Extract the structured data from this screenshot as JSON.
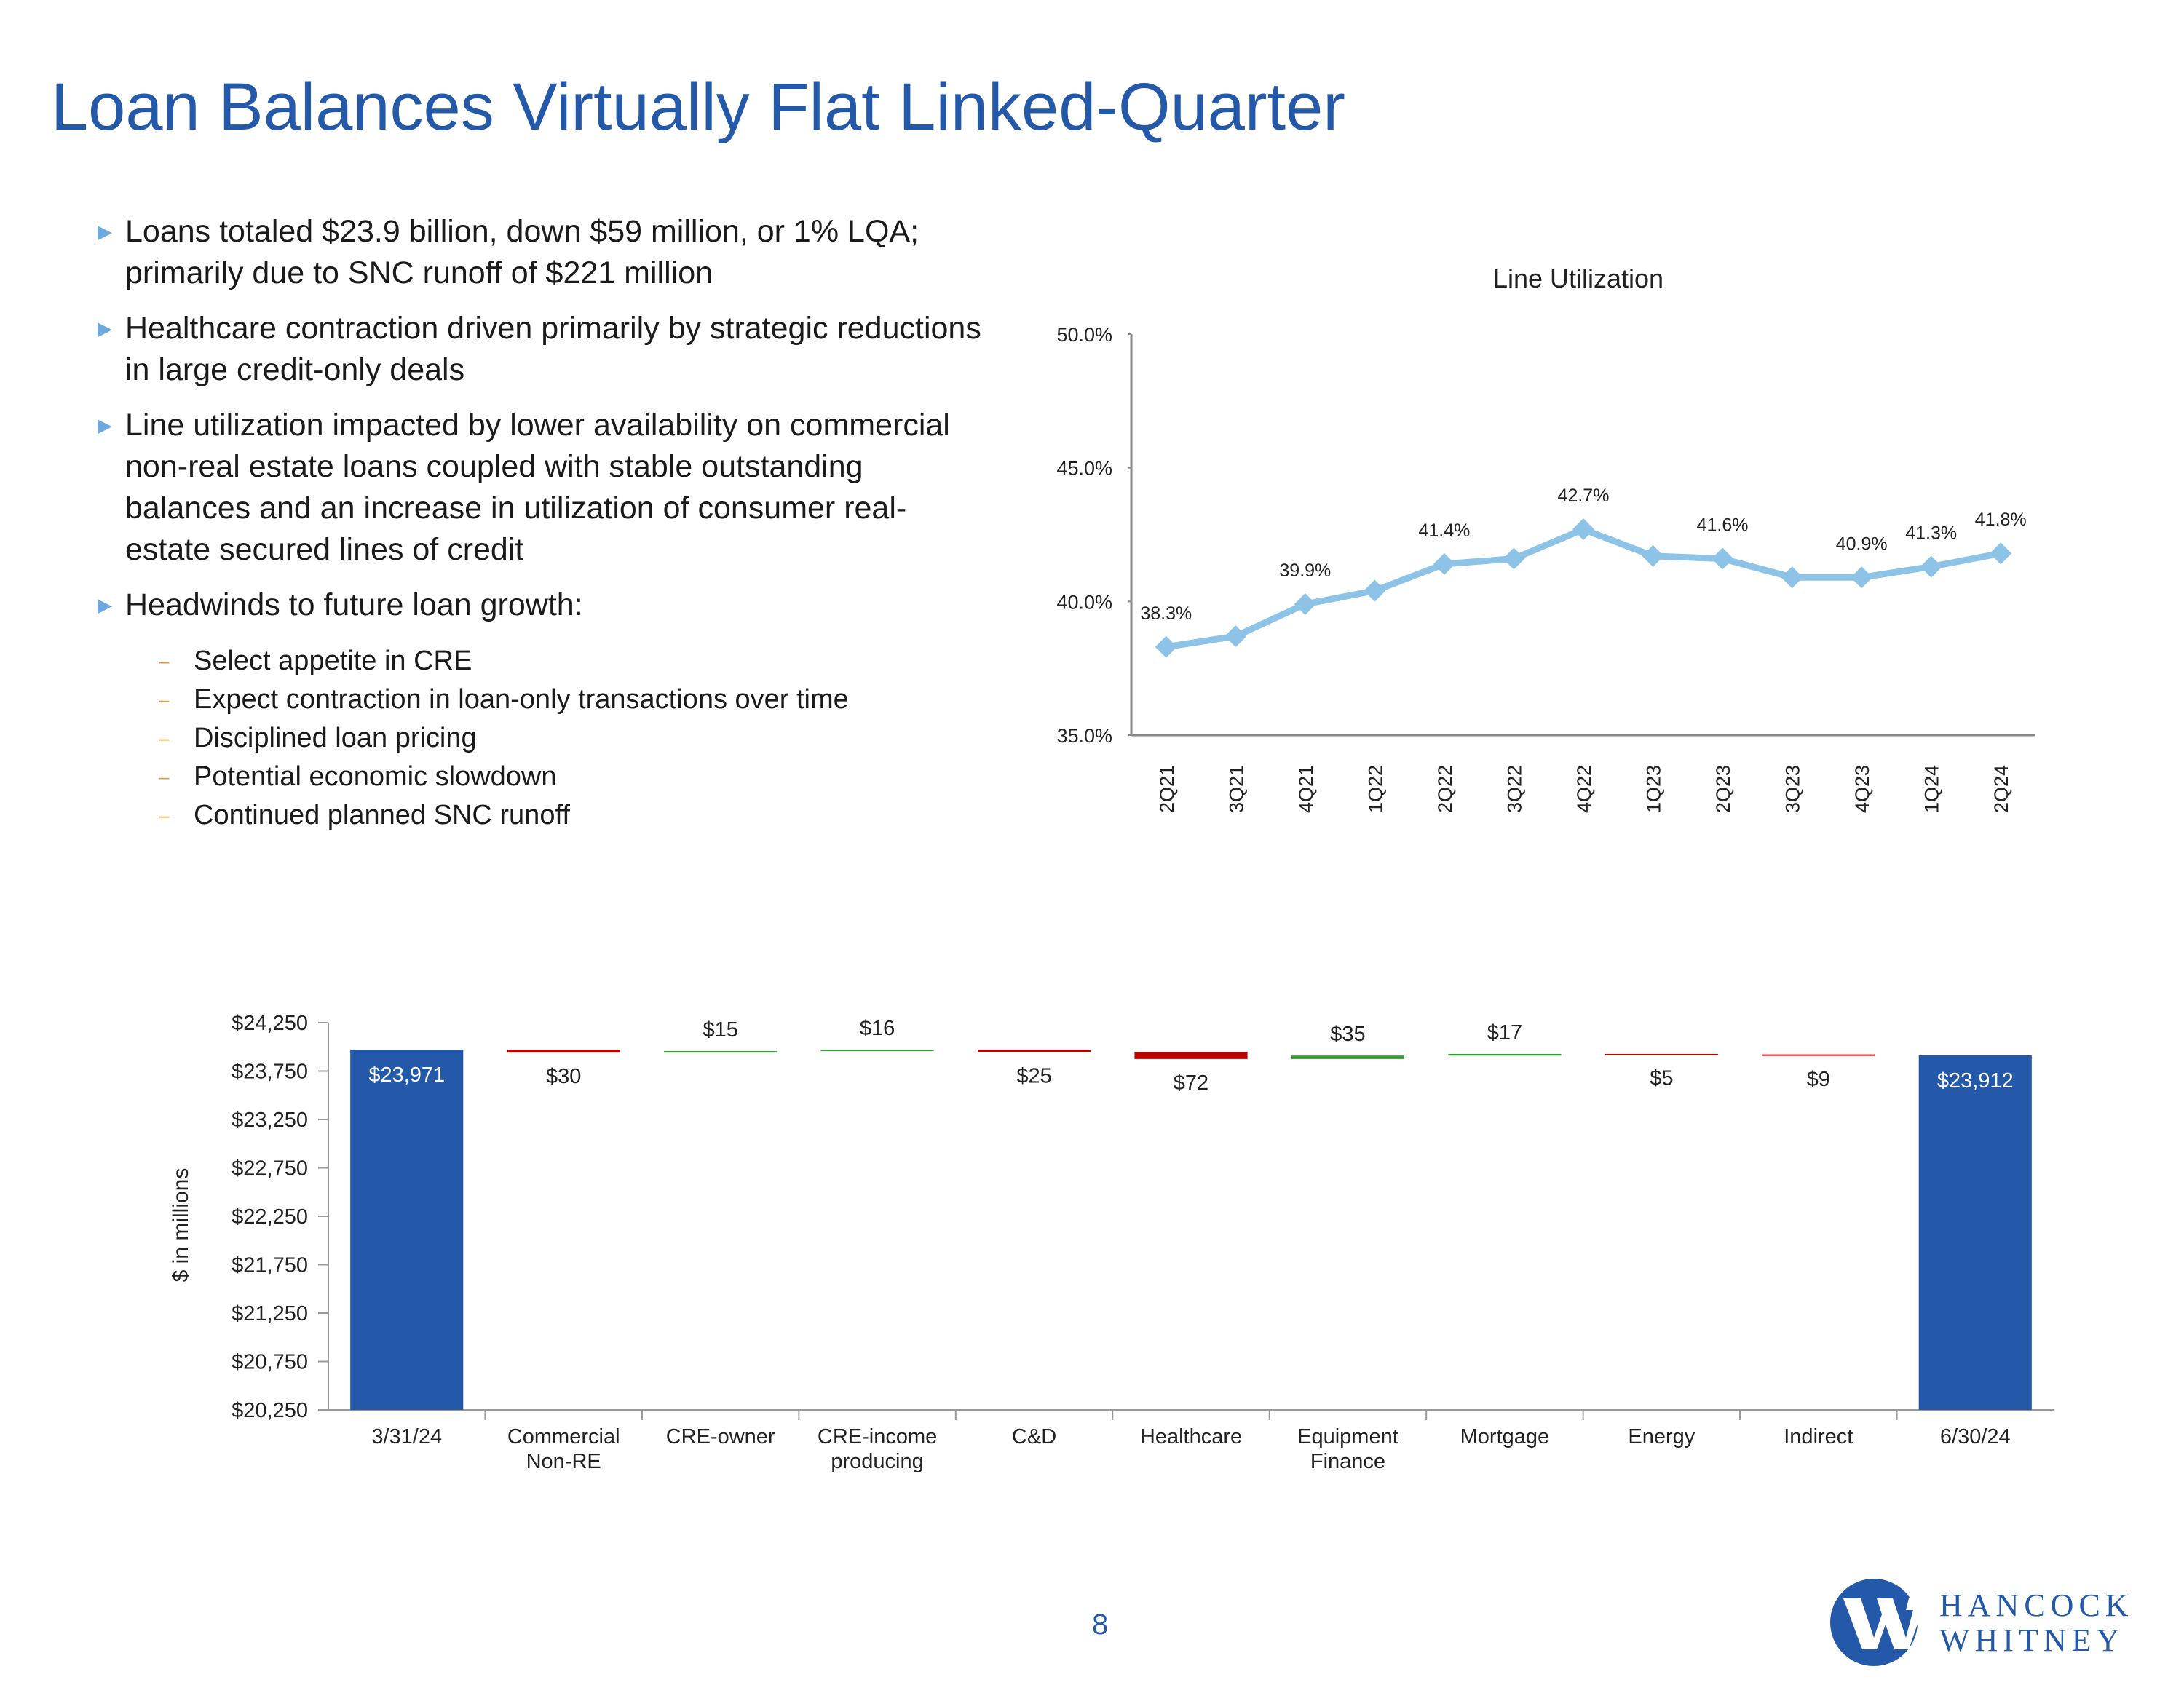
{
  "title": "Loan Balances Virtually Flat Linked-Quarter",
  "bullets": [
    "Loans totaled $23.9 billion, down $59 million, or 1% LQA; primarily due to SNC runoff of $221 million",
    "Healthcare contraction driven primarily by strategic reductions in large credit-only deals",
    "Line utilization impacted by lower availability on commercial non-real estate loans coupled with stable outstanding balances and an increase in utilization of consumer real-estate secured lines of credit",
    "Headwinds to future loan growth:"
  ],
  "sub_bullets": [
    "Select appetite in CRE",
    "Expect contraction in loan-only transactions over time",
    "Disciplined loan pricing",
    "Potential economic slowdown",
    "Continued planned SNC runoff"
  ],
  "page_number": "8",
  "logo": [
    "HANCOCK",
    "WHITNEY"
  ],
  "chart_data": [
    {
      "type": "line",
      "title": "Line Utilization",
      "categories": [
        "2Q21",
        "3Q21",
        "4Q21",
        "1Q22",
        "2Q22",
        "3Q22",
        "4Q22",
        "1Q23",
        "2Q23",
        "3Q23",
        "4Q23",
        "1Q24",
        "2Q24"
      ],
      "values": [
        38.3,
        38.7,
        39.9,
        40.4,
        41.4,
        41.6,
        42.7,
        41.7,
        41.6,
        40.9,
        40.9,
        41.3,
        41.8
      ],
      "value_labels": [
        "38.3%",
        null,
        "39.9%",
        null,
        "41.4%",
        null,
        "42.7%",
        null,
        "41.6%",
        null,
        "40.9%",
        "41.3%",
        "41.8%"
      ],
      "color": "#8dc3e6",
      "ylim": [
        35,
        50
      ],
      "yticks": [
        {
          "value": 35,
          "label": "35.0%"
        },
        {
          "value": 40,
          "label": "40.0%"
        },
        {
          "value": 45,
          "label": "45.0%"
        },
        {
          "value": 50,
          "label": "50.0%"
        }
      ]
    },
    {
      "type": "waterfall",
      "y_label": "$ in millions",
      "categories": [
        "3/31/24",
        "Commercial Non-RE",
        "CRE-owner",
        "CRE-income producing",
        "C&D",
        "Healthcare",
        "Equipment Finance",
        "Mortgage",
        "Energy",
        "Indirect",
        "6/30/24"
      ],
      "values": [
        23971,
        -30,
        15,
        16,
        -25,
        -72,
        35,
        17,
        -5,
        -9,
        23912
      ],
      "value_labels": [
        "$23,971",
        "$30",
        "$15",
        "$16",
        "$25",
        "$72",
        "$35",
        "$17",
        "$5",
        "$9",
        "$23,912"
      ],
      "colors": [
        "#2359a8",
        "#c00000",
        "#339933",
        "#339933",
        "#c00000",
        "#c00000",
        "#339933",
        "#339933",
        "#c00000",
        "#c00000",
        "#2359a8"
      ],
      "ylim": [
        20250,
        24250
      ],
      "yticks": [
        {
          "value": 20250,
          "label": "$20,250"
        },
        {
          "value": 20750,
          "label": "$20,750"
        },
        {
          "value": 21250,
          "label": "$21,250"
        },
        {
          "value": 21750,
          "label": "$21,750"
        },
        {
          "value": 22250,
          "label": "$22,250"
        },
        {
          "value": 22750,
          "label": "$22,750"
        },
        {
          "value": 23250,
          "label": "$23,250"
        },
        {
          "value": 23750,
          "label": "$23,750"
        },
        {
          "value": 24250,
          "label": "$24,250"
        }
      ]
    }
  ]
}
